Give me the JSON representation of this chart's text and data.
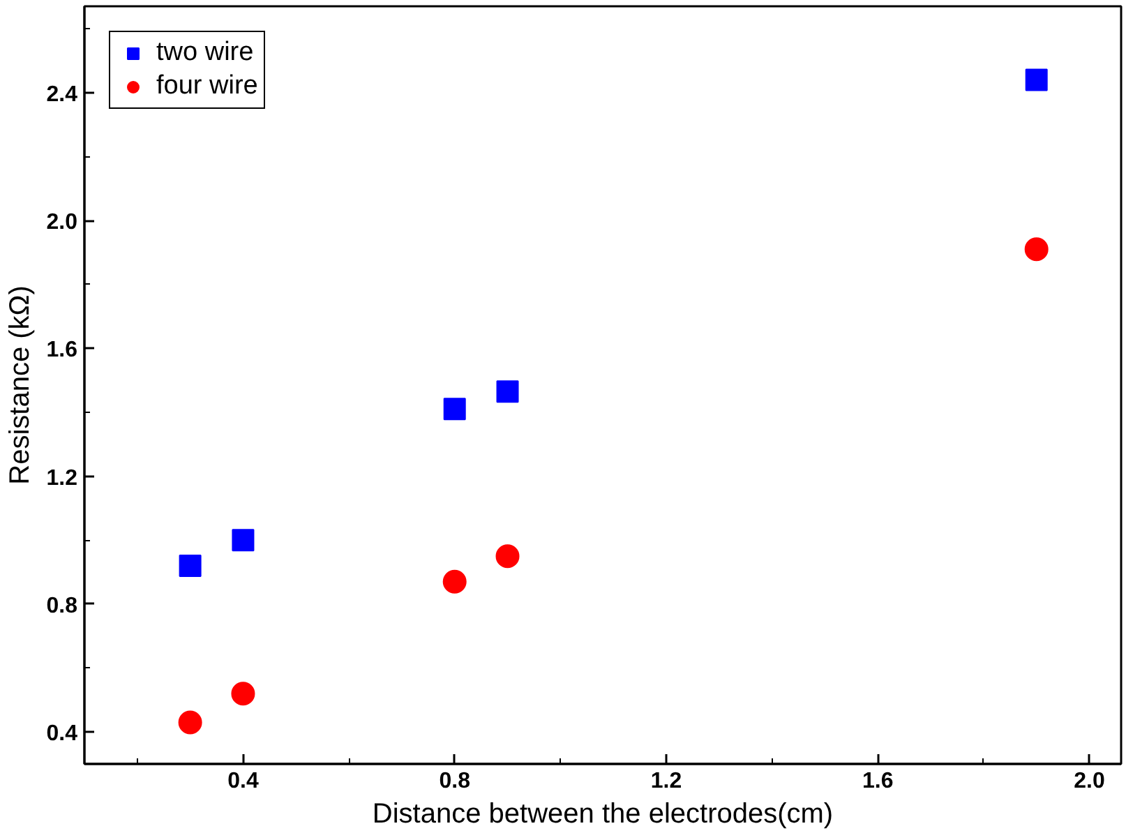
{
  "chart_data": {
    "type": "scatter",
    "xlabel": "Distance between the electrodes(cm)",
    "ylabel": "Resistance (kΩ)",
    "x": [
      0.3,
      0.4,
      0.8,
      0.9,
      1.9
    ],
    "series": [
      {
        "name": "two wire",
        "color": "#0000ff",
        "marker": "square",
        "values": [
          0.92,
          1.0,
          1.41,
          1.465,
          2.44
        ]
      },
      {
        "name": "four wire",
        "color": "#ff0000",
        "marker": "circle",
        "values": [
          0.43,
          0.52,
          0.87,
          0.95,
          1.91
        ]
      }
    ],
    "xlim": [
      0.1,
      2.06
    ],
    "ylim": [
      0.3,
      2.67
    ],
    "xticks": [
      0.4,
      0.8,
      1.2,
      1.6,
      {
        "value": 2,
        "label": "2.0"
      }
    ],
    "yticks": [
      0.4,
      0.8,
      1.2,
      1.6,
      {
        "value": 2,
        "label": "2.0"
      },
      2.4
    ],
    "grid": false,
    "legend": "top left"
  }
}
